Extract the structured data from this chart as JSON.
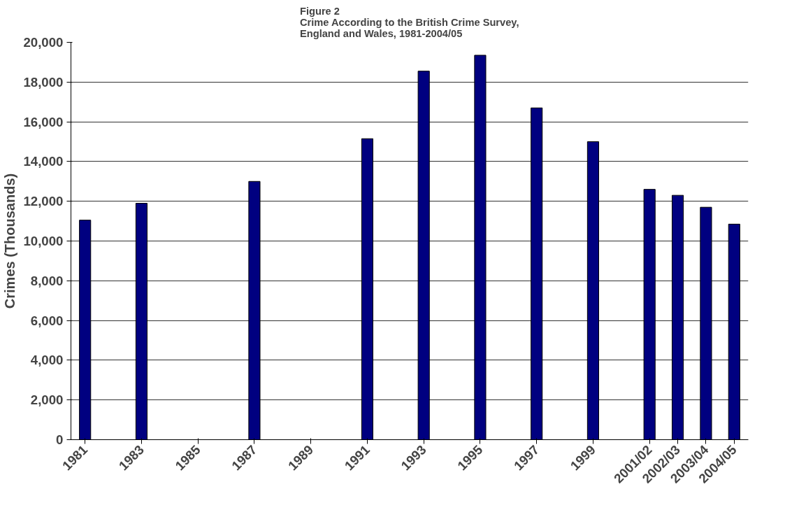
{
  "chart_data": {
    "type": "bar",
    "title": "Figure 2\nCrime According to the British Crime Survey,\nEngland and Wales, 1981-2004/05",
    "ylabel": "Crimes (Thousands)",
    "categories": [
      "1981",
      null,
      "1983",
      null,
      "1985",
      null,
      "1987",
      null,
      "1989",
      null,
      "1991",
      null,
      "1993",
      null,
      "1995",
      null,
      "1997",
      null,
      "1999",
      null,
      "2001/02",
      "2002/03",
      "2003/04",
      "2004/05"
    ],
    "values": [
      11050,
      null,
      11900,
      null,
      null,
      null,
      13000,
      null,
      null,
      null,
      15150,
      null,
      18550,
      null,
      19350,
      null,
      16700,
      null,
      15000,
      null,
      12600,
      12300,
      11700,
      10850
    ],
    "color": "#000080",
    "ylim": [
      0,
      20000
    ],
    "yticks": [
      {
        "value": 0,
        "label": "0"
      },
      {
        "value": 2000,
        "label": "2,000"
      },
      {
        "value": 4000,
        "label": "4,000"
      },
      {
        "value": 6000,
        "label": "6,000"
      },
      {
        "value": 8000,
        "label": "8,000"
      },
      {
        "value": 10000,
        "label": "10,000"
      },
      {
        "value": 12000,
        "label": "12,000"
      },
      {
        "value": 14000,
        "label": "14,000"
      },
      {
        "value": 16000,
        "label": "16,000"
      },
      {
        "value": 18000,
        "label": "18,000"
      },
      {
        "value": 20000,
        "label": "20,000"
      }
    ],
    "grid": "y"
  }
}
